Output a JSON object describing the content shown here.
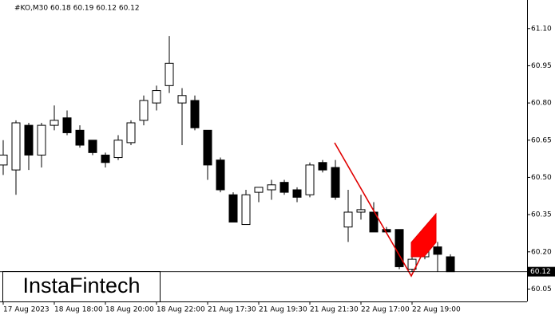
{
  "chart_data": {
    "type": "candlestick",
    "title": "#KO,M30  60.18 60.19 60.12 60.12",
    "categories": [
      "17 Aug 2023",
      null,
      null,
      null,
      "18 Aug 18:00",
      null,
      null,
      null,
      "18 Aug 20:00",
      null,
      null,
      null,
      "18 Aug 22:00",
      null,
      null,
      null,
      "21 Aug 17:30",
      null,
      null,
      null,
      "21 Aug 19:30",
      null,
      null,
      null,
      "21 Aug 21:30",
      null,
      null,
      null,
      "22 Aug 17:00",
      null,
      null,
      null,
      "22 Aug 19:00",
      null,
      null,
      null
    ],
    "open": [
      60.55,
      60.53,
      60.71,
      60.59,
      60.71,
      60.74,
      60.69,
      60.65,
      60.59,
      60.58,
      60.64,
      60.73,
      60.8,
      60.87,
      60.8,
      60.81,
      60.69,
      60.57,
      60.43,
      60.31,
      60.44,
      60.45,
      60.48,
      60.45,
      60.43,
      60.56,
      60.54,
      60.3,
      60.36,
      60.36,
      60.29,
      60.29,
      60.13,
      60.18,
      60.22,
      60.18
    ],
    "high": [
      60.65,
      60.73,
      60.72,
      60.72,
      60.79,
      60.77,
      60.71,
      60.65,
      60.6,
      60.67,
      60.73,
      60.83,
      60.87,
      61.07,
      60.86,
      60.83,
      60.69,
      60.58,
      60.44,
      60.45,
      60.46,
      60.49,
      60.49,
      60.46,
      60.56,
      60.57,
      60.57,
      60.45,
      60.43,
      60.4,
      60.3,
      60.29,
      60.19,
      60.25,
      60.24,
      60.19
    ],
    "low": [
      60.51,
      60.43,
      60.53,
      60.54,
      60.69,
      60.67,
      60.62,
      60.59,
      60.54,
      60.57,
      60.63,
      60.71,
      60.77,
      60.84,
      60.63,
      60.69,
      60.49,
      60.44,
      60.32,
      60.31,
      60.4,
      60.41,
      60.43,
      60.4,
      60.42,
      60.52,
      60.41,
      60.24,
      60.33,
      60.28,
      60.28,
      60.13,
      60.12,
      60.17,
      60.12,
      60.12
    ],
    "close": [
      60.59,
      60.72,
      60.59,
      60.71,
      60.73,
      60.68,
      60.63,
      60.6,
      60.56,
      60.65,
      60.72,
      60.81,
      60.85,
      60.96,
      60.83,
      60.7,
      60.55,
      60.45,
      60.32,
      60.43,
      60.46,
      60.47,
      60.44,
      60.42,
      60.55,
      60.53,
      60.42,
      60.36,
      60.37,
      60.28,
      60.28,
      60.14,
      60.17,
      60.23,
      60.19,
      60.12
    ],
    "up_color": "#ffffff",
    "down_color": "#000000",
    "ylim": [
      60.0,
      61.215
    ],
    "yticks": [
      {
        "value": 61.1,
        "label": "61.10"
      },
      60.95,
      {
        "value": 60.8,
        "label": "60.80"
      },
      60.65,
      {
        "value": 60.5,
        "label": "60.50"
      },
      60.35,
      {
        "value": 60.2,
        "label": "60.20"
      },
      60.05
    ],
    "last_price": {
      "value": 60.12,
      "label": "60.12"
    }
  },
  "logo": "InstaFintech"
}
